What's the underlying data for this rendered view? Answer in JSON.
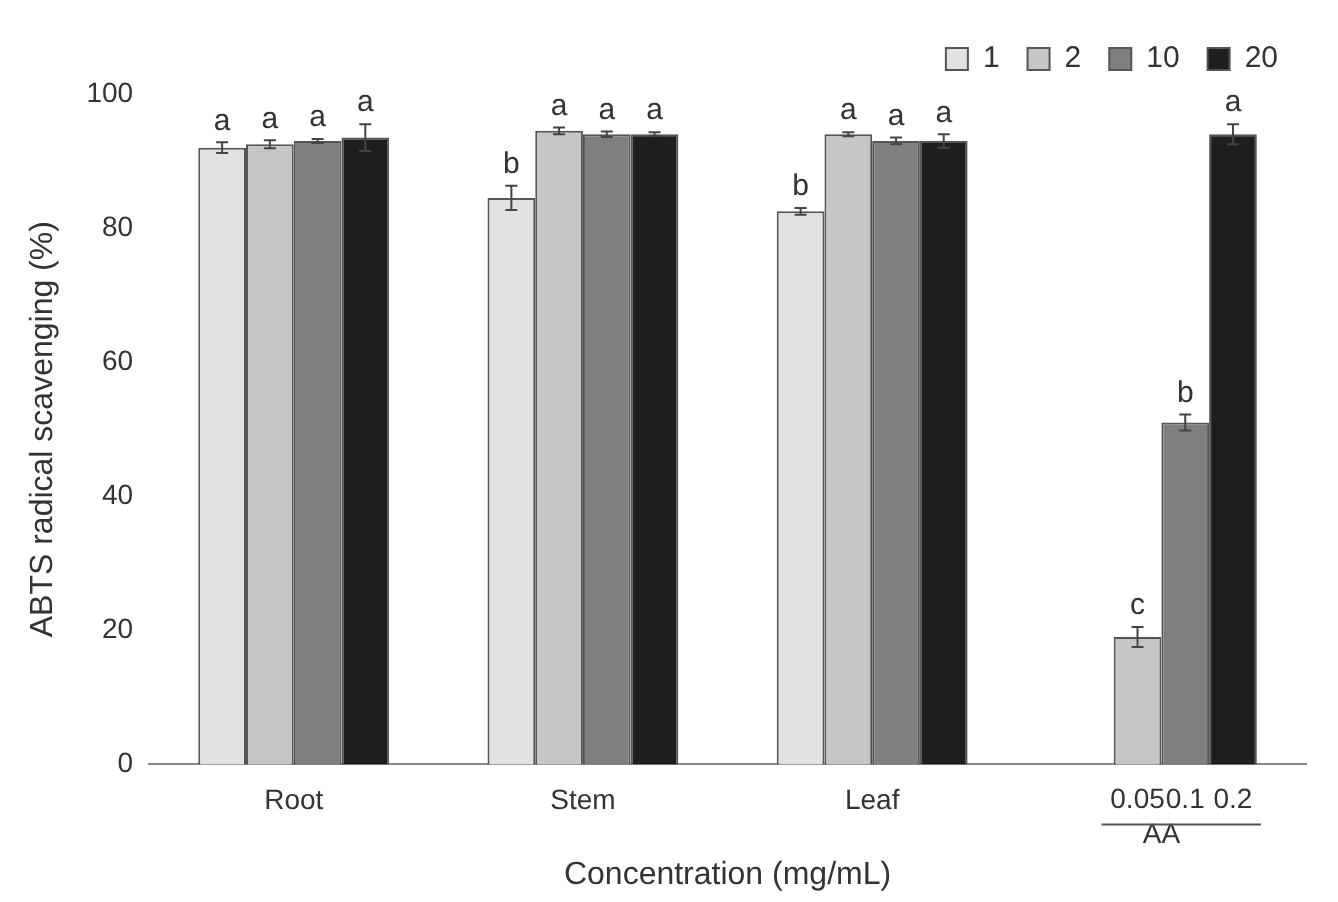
{
  "chart_data": {
    "type": "bar",
    "xlabel": "Concentration (mg/mL)",
    "ylabel": "ABTS radical scavenging (%)",
    "categories": [
      "Root",
      "Stem",
      "Leaf",
      "AA"
    ],
    "series": [
      {
        "name": "1",
        "color": "#e2e2e2",
        "values": [
          92,
          84.5,
          82.5,
          null
        ],
        "errors": [
          0.8,
          1.8,
          0.5,
          null
        ],
        "value_labels": [
          "a",
          "b",
          "b",
          null
        ]
      },
      {
        "name": "2",
        "color": "#c6c6c6",
        "values": [
          92.5,
          94.5,
          94,
          19
        ],
        "errors": [
          0.6,
          0.5,
          0.3,
          1.5
        ],
        "value_labels": [
          "a",
          "a",
          "a",
          "c"
        ]
      },
      {
        "name": "10",
        "color": "#7f7f7f",
        "values": [
          93,
          94,
          93,
          51
        ],
        "errors": [
          0.3,
          0.4,
          0.5,
          1.2
        ],
        "value_labels": [
          "a",
          "a",
          "a",
          "b"
        ]
      },
      {
        "name": "20",
        "color": "#1e1e1e",
        "values": [
          93.5,
          94,
          93,
          94
        ],
        "errors": [
          2,
          0.3,
          1,
          1.5
        ],
        "value_labels": [
          "a",
          "a",
          "a",
          "a"
        ]
      }
    ],
    "annotations": [
      "0.05",
      "0.1",
      "0.2"
    ],
    "ylim": [
      0,
      100
    ],
    "yticks": [
      0,
      20,
      40,
      60,
      80,
      100
    ],
    "grid": false,
    "legend": "top right"
  }
}
